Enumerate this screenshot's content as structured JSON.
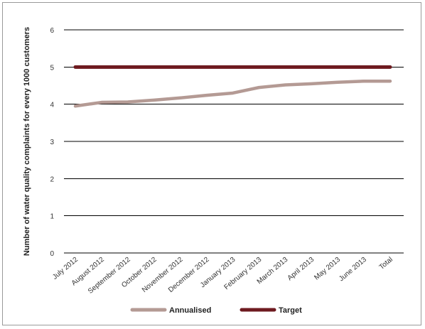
{
  "chart_data": {
    "type": "line",
    "title": "",
    "xlabel": "",
    "ylabel": "Number of water quality complaints for every 1000 customers",
    "categories": [
      "July 2012",
      "August 2012",
      "September 2012",
      "October 2012",
      "November 2012",
      "December 2012",
      "January 2013",
      "February 2013",
      "March 2013",
      "April 2013",
      "May 2013",
      "June 2013",
      "Total"
    ],
    "ylim": [
      0,
      6
    ],
    "yticks": [
      0,
      1,
      2,
      3,
      4,
      5,
      6
    ],
    "grid": "horizontal",
    "legend_position": "bottom",
    "series": [
      {
        "name": "Annualised",
        "color": "#b49a94",
        "values": [
          3.95,
          4.05,
          4.06,
          4.11,
          4.17,
          4.24,
          4.3,
          4.45,
          4.52,
          4.55,
          4.59,
          4.62,
          4.62
        ]
      },
      {
        "name": "Target",
        "color": "#6e1a1f",
        "values": [
          5,
          5,
          5,
          5,
          5,
          5,
          5,
          5,
          5,
          5,
          5,
          5,
          5
        ]
      }
    ]
  }
}
